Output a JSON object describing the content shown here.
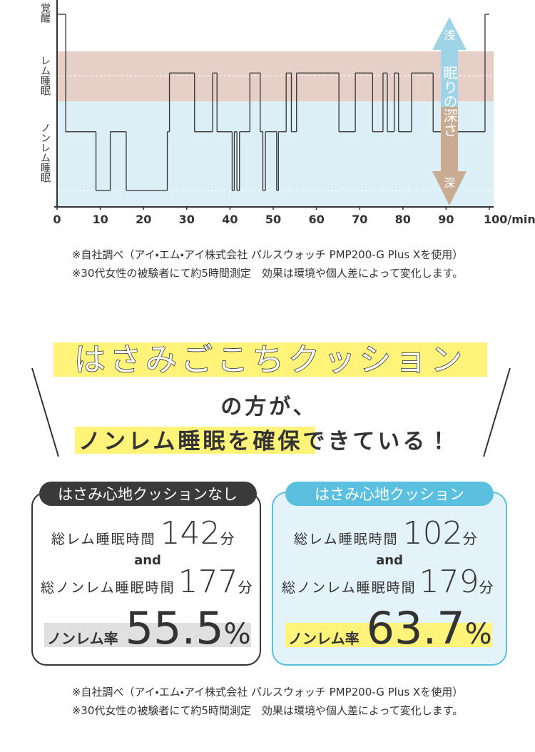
{
  "chart_data": {
    "type": "step",
    "ylabels": [
      "覚醒",
      "レム睡眠",
      "ノンレム睡眠"
    ],
    "depth_arrow": {
      "top": "浅",
      "middle": "眠りの深さ",
      "bottom": "深"
    },
    "x": [
      0,
      2,
      9,
      12.3,
      16,
      25.5,
      26,
      31.8,
      36,
      37,
      40.5,
      41,
      41.6,
      42.2,
      44.6,
      47,
      47.6,
      48.2,
      50.8,
      51.2,
      53,
      54.2,
      55.4,
      65.2,
      69,
      73,
      75.4,
      76.4,
      78,
      79,
      82,
      87,
      99
    ],
    "values": [
      3,
      1,
      0,
      1,
      0,
      1,
      2,
      1,
      2,
      1,
      0,
      1,
      0,
      1,
      2,
      1,
      0,
      1,
      0,
      1,
      2,
      1,
      2,
      1,
      2,
      1,
      2,
      1,
      2,
      1,
      2,
      1,
      3
    ],
    "xlim": [
      0,
      100
    ],
    "ylim": [
      0,
      3
    ],
    "xticks": [
      0,
      10,
      20,
      30,
      40,
      50,
      60,
      70,
      80,
      90,
      {
        "value": 100,
        "label": "100/min"
      }
    ],
    "color": "#333333"
  },
  "notes_top": [
    "※自社調べ（アイ・エム・アイ株式会社 パルスウォッチ PMP200-G Plus Xを使用）",
    "※30代女性の被験者にて約5時間測定　効果は環境や個人差によって変化します。"
  ],
  "headline": {
    "product": "はさみごこちクッション",
    "line2": "の方が、",
    "line3_highlight": "ノンレム睡眠を確保",
    "line3_rest": "できている！"
  },
  "cards": [
    {
      "label": "はさみ心地クッションなし",
      "rem_label": "総レム睡眠時間",
      "rem_value": 142,
      "rem_unit": "分",
      "and": "and",
      "nonrem_label": "総ノンレム睡眠時間",
      "nonrem_value": 177,
      "nonrem_unit": "分",
      "ratio_label": "ノンレム率",
      "ratio_value": 55.5,
      "ratio_unit": "%"
    },
    {
      "label": "はさみ心地クッション",
      "rem_label": "総レム睡眠時間",
      "rem_value": 102,
      "rem_unit": "分",
      "and": "and",
      "nonrem_label": "総ノンレム睡眠時間",
      "nonrem_value": 179,
      "nonrem_unit": "分",
      "ratio_label": "ノンレム率",
      "ratio_value": 63.7,
      "ratio_unit": "%"
    }
  ],
  "notes_bottom": [
    "※自社調べ（アイ・エム・アイ株式会社 パルスウォッチ PMP200-G Plus Xを使用）",
    "※30代女性の被験者にて約5時間測定　効果は環境や個人差によって変化します。"
  ]
}
